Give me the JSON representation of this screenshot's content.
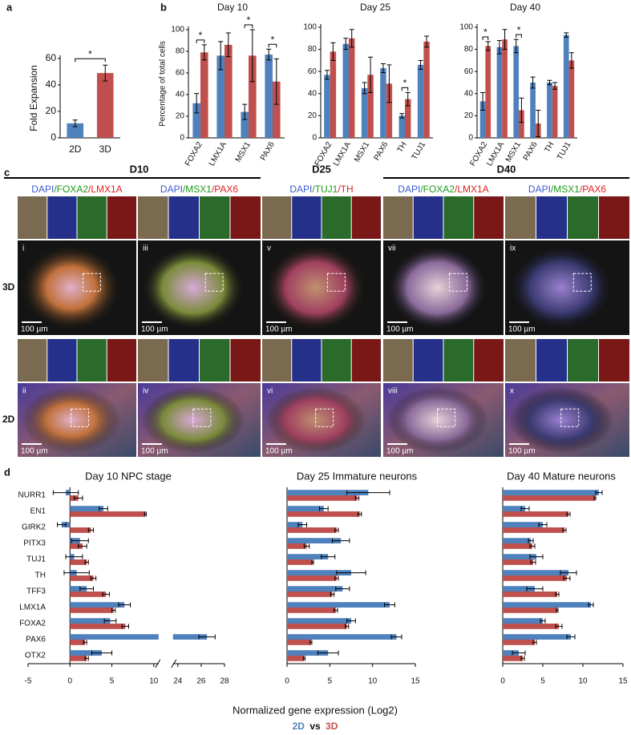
{
  "panel_labels": [
    "a",
    "b",
    "c",
    "d"
  ],
  "chart_data": [
    {
      "type": "bar",
      "categories": [
        "2D",
        "3D"
      ],
      "values": [
        11,
        49
      ],
      "errors": [
        2.5,
        6
      ],
      "colors": [
        "#4f81bd",
        "#c0504d"
      ],
      "ylabel": "Fold Expansion",
      "ylim": [
        0,
        60
      ],
      "yticks": [
        0,
        20,
        40,
        60
      ],
      "significance": "*"
    },
    {
      "type": "bar",
      "title": "Day 10",
      "ylabel": "Percentage of total cells",
      "categories": [
        "FOXA2",
        "LMX1A",
        "MSX1",
        "PAX6"
      ],
      "series": [
        {
          "color": "#4f81bd",
          "values": [
            32,
            76,
            24,
            77
          ],
          "errors": [
            9,
            13,
            7,
            5
          ]
        },
        {
          "color": "#c0504d",
          "values": [
            79,
            86,
            76,
            52
          ],
          "errors": [
            7,
            11,
            24,
            21
          ]
        }
      ],
      "ylim": [
        0,
        100
      ],
      "yticks": [
        0,
        20,
        40,
        60,
        80,
        100
      ],
      "significance": [
        "*",
        null,
        "*",
        "*"
      ]
    },
    {
      "type": "bar",
      "title": "Day 25",
      "categories": [
        "FOXA2",
        "LMX1A",
        "MSX1",
        "PAX6",
        "TH",
        "TUJ1"
      ],
      "series": [
        {
          "color": "#4f81bd",
          "values": [
            57,
            85,
            45,
            63,
            20,
            66
          ],
          "errors": [
            4,
            5,
            5,
            4,
            2,
            4
          ]
        },
        {
          "color": "#c0504d",
          "values": [
            78,
            90,
            57,
            49,
            35,
            87
          ],
          "errors": [
            8,
            8,
            16,
            17,
            6,
            5
          ]
        }
      ],
      "ylim": [
        0,
        100
      ],
      "yticks": [
        0,
        20,
        40,
        60,
        80,
        100
      ],
      "significance": [
        null,
        null,
        null,
        null,
        "*",
        null
      ]
    },
    {
      "type": "bar",
      "title": "Day 40",
      "categories": [
        "FOXA2",
        "LMX1A",
        "MSX1",
        "PAX6",
        "TH",
        "TUJ1"
      ],
      "series": [
        {
          "color": "#4f81bd",
          "values": [
            33,
            82,
            83,
            50,
            50,
            93
          ],
          "errors": [
            8,
            6,
            6,
            5,
            2,
            2
          ]
        },
        {
          "color": "#c0504d",
          "values": [
            83,
            89,
            25,
            13,
            47,
            70
          ],
          "errors": [
            4,
            9,
            11,
            12,
            3,
            7
          ]
        }
      ],
      "ylim": [
        0,
        100
      ],
      "yticks": [
        0,
        20,
        40,
        60,
        80,
        100
      ],
      "significance": [
        "*",
        null,
        "*",
        null,
        null,
        null
      ]
    },
    {
      "type": "hbar",
      "title": "Day 10 NPC stage",
      "categories": [
        "NURR1",
        "EN1",
        "GIRK2",
        "PITX3",
        "TUJ1",
        "TH",
        "TFF3",
        "LMX1A",
        "FOXA2",
        "PAX6",
        "OTX2"
      ],
      "series": [
        {
          "name": "2D",
          "color": "#4f81bd",
          "values": [
            -0.5,
            4,
            -1,
            1.2,
            0.5,
            0.8,
            2,
            6.5,
            4.8,
            26.5,
            3.8
          ],
          "errors": [
            1.5,
            0.5,
            0.5,
            1,
            1,
            1.5,
            0.8,
            0.7,
            0.7,
            0.7,
            1.2
          ]
        },
        {
          "name": "3D",
          "color": "#c0504d",
          "values": [
            1,
            9,
            2.5,
            1.5,
            2,
            2.8,
            4.3,
            5.2,
            6.6,
            1.8,
            2
          ],
          "errors": [
            0.5,
            0.1,
            0.3,
            0.5,
            0.2,
            0.3,
            0.4,
            0.2,
            0.4,
            0.2,
            0.2
          ]
        }
      ],
      "xlim": [
        -5,
        28
      ],
      "xbreak": [
        10,
        24
      ],
      "xticks": [
        -5,
        0,
        5,
        10,
        24,
        26,
        28
      ]
    },
    {
      "type": "hbar",
      "title": "Day 25 Immature neurons",
      "series": [
        {
          "color": "#4f81bd",
          "values": [
            9.5,
            4.3,
            1.8,
            6.3,
            4.8,
            7.5,
            6.5,
            12,
            7.5,
            12.8,
            4.8
          ],
          "errors": [
            2.5,
            0.5,
            0.5,
            1,
            0.8,
            1.7,
            0.8,
            0.6,
            0.5,
            0.6,
            1.2
          ]
        },
        {
          "color": "#c0504d",
          "values": [
            8.2,
            8.5,
            5.8,
            2.3,
            3,
            5.8,
            5.3,
            5.7,
            7,
            2.8,
            2
          ],
          "errors": [
            0.2,
            0.2,
            0.2,
            0.3,
            0.1,
            0.2,
            0.2,
            0.2,
            0.2,
            0.1,
            0.1
          ]
        }
      ],
      "xlim": [
        0,
        15
      ],
      "xticks": [
        0,
        5,
        10,
        15
      ]
    },
    {
      "type": "hbar",
      "title": "Day 40 Mature neurons",
      "series": [
        {
          "color": "#4f81bd",
          "values": [
            12,
            2.8,
            5,
            3.5,
            4.2,
            8.2,
            4,
            11,
            5,
            8.5,
            2
          ],
          "errors": [
            0.4,
            0.5,
            0.5,
            0.3,
            0.8,
            1,
            1,
            0.3,
            0.3,
            0.5,
            0.8
          ]
        },
        {
          "color": "#c0504d",
          "values": [
            11.5,
            8.2,
            7.7,
            3.7,
            3.8,
            8,
            6.8,
            6.8,
            7,
            4,
            2.5
          ],
          "errors": [
            0.1,
            0.2,
            0.2,
            0.3,
            0.3,
            0.4,
            0.2,
            0.1,
            0.4,
            0.2,
            0.2
          ]
        }
      ],
      "xlim": [
        0,
        15
      ],
      "xticks": [
        0,
        5,
        10,
        15
      ]
    }
  ],
  "microscopy": {
    "timepoints": [
      "D10",
      "D25",
      "D40"
    ],
    "conditions": [
      "3D",
      "2D"
    ],
    "panels": [
      {
        "stain": [
          {
            "text": "DAPI",
            "color": "#3b5bd6"
          },
          {
            "text": "/FOXA2",
            "color": "#1a9a1a"
          },
          {
            "text": "/LMX1A",
            "color": "#e02020"
          }
        ],
        "images": [
          {
            "numeral": "i",
            "scale_bar": "100 µm"
          },
          {
            "numeral": "ii",
            "scale_bar": "100 µm"
          }
        ]
      },
      {
        "stain": [
          {
            "text": "DAPI",
            "color": "#3b5bd6"
          },
          {
            "text": "/MSX1",
            "color": "#1a9a1a"
          },
          {
            "text": "/PAX6",
            "color": "#e02020"
          }
        ],
        "images": [
          {
            "numeral": "iii",
            "scale_bar": "100 µm"
          },
          {
            "numeral": "iv",
            "scale_bar": "100 µm"
          }
        ]
      },
      {
        "stain": [
          {
            "text": "DAPI",
            "color": "#3b5bd6"
          },
          {
            "text": "/TUJ1",
            "color": "#1a9a1a"
          },
          {
            "text": "/TH",
            "color": "#e02020"
          }
        ],
        "images": [
          {
            "numeral": "v",
            "scale_bar": "100 µm"
          },
          {
            "numeral": "vi",
            "scale_bar": "100 µm"
          }
        ]
      },
      {
        "stain": [
          {
            "text": "DAPI",
            "color": "#3b5bd6"
          },
          {
            "text": "/FOXA2",
            "color": "#1a9a1a"
          },
          {
            "text": "/LMX1A",
            "color": "#e02020"
          }
        ],
        "images": [
          {
            "numeral": "vii",
            "scale_bar": "100 µm"
          },
          {
            "numeral": "viii",
            "scale_bar": "100 µm"
          }
        ]
      },
      {
        "stain": [
          {
            "text": "DAPI",
            "color": "#3b5bd6"
          },
          {
            "text": "/MSX1",
            "color": "#1a9a1a"
          },
          {
            "text": "/PAX6",
            "color": "#e02020"
          }
        ],
        "images": [
          {
            "numeral": "ix",
            "scale_bar": "100 µm"
          },
          {
            "numeral": "x",
            "scale_bar": "100 µm"
          }
        ]
      }
    ]
  },
  "footer": {
    "xlabel": "Normalized gene expression (Log2)",
    "legend_joiner": "vs"
  }
}
